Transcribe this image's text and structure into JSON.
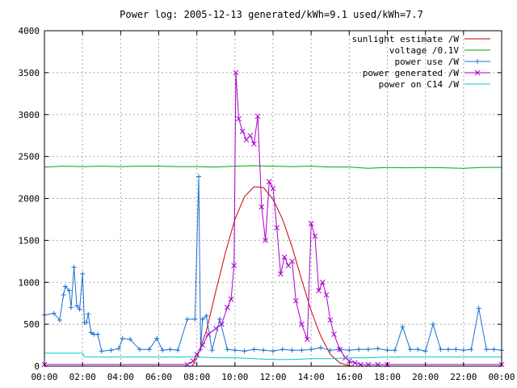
{
  "chart_data": {
    "type": "line",
    "title": "Power log: 2005-12-13 generated/kWh=9.1 used/kWh=7.7",
    "xlabel": "",
    "ylabel": "",
    "xlim": [
      0,
      24
    ],
    "ylim": [
      0,
      4000
    ],
    "x_ticks": [
      "00:00",
      "02:00",
      "04:00",
      "06:00",
      "08:00",
      "10:00",
      "12:00",
      "14:00",
      "16:00",
      "18:00",
      "20:00",
      "22:00",
      "00:00"
    ],
    "y_ticks": [
      "0",
      "500",
      "1000",
      "1500",
      "2000",
      "2500",
      "3000",
      "3500",
      "4000"
    ],
    "grid": true,
    "legend_position": "top-right",
    "series": [
      {
        "name": "sunlight estimate /W",
        "color": "#cc0000",
        "marker": "none",
        "x": [
          7.75,
          8,
          8.5,
          9,
          9.5,
          10,
          10.5,
          11,
          11.5,
          12,
          12.5,
          13,
          13.5,
          14,
          14.5,
          15,
          15.5,
          16,
          16.25
        ],
        "y": [
          0,
          100,
          420,
          900,
          1350,
          1750,
          2020,
          2140,
          2130,
          1990,
          1750,
          1420,
          1030,
          660,
          360,
          140,
          40,
          5,
          0
        ]
      },
      {
        "name": "voltage /0.1V",
        "color": "#00aa00",
        "marker": "none",
        "x": [
          0,
          1,
          2,
          3,
          4,
          5,
          6,
          7,
          8,
          9,
          10,
          11,
          12,
          13,
          14,
          15,
          16,
          17,
          18,
          19,
          20,
          21,
          22,
          23,
          24
        ],
        "y": [
          2375,
          2385,
          2380,
          2385,
          2380,
          2385,
          2385,
          2380,
          2380,
          2375,
          2385,
          2390,
          2385,
          2380,
          2385,
          2375,
          2375,
          2360,
          2370,
          2365,
          2370,
          2365,
          2360,
          2370,
          2370
        ]
      },
      {
        "name": "power use /W",
        "color": "#1a6fd1",
        "marker": "plus",
        "x": [
          0,
          0.5,
          0.8,
          1.0,
          1.1,
          1.3,
          1.4,
          1.55,
          1.7,
          1.85,
          2.0,
          2.1,
          2.2,
          2.3,
          2.45,
          2.6,
          2.8,
          3.0,
          3.5,
          3.9,
          4.1,
          4.5,
          5.0,
          5.5,
          5.9,
          6.2,
          6.6,
          7.0,
          7.5,
          7.9,
          8.1,
          8.2,
          8.3,
          8.5,
          8.8,
          9.2,
          9.6,
          10.0,
          10.5,
          11.0,
          11.5,
          12.0,
          12.5,
          13.0,
          13.5,
          14.0,
          14.5,
          15.0,
          15.5,
          16.0,
          16.5,
          17.0,
          17.5,
          18.0,
          18.4,
          18.8,
          19.2,
          19.6,
          20.0,
          20.4,
          20.8,
          21.2,
          21.6,
          22.0,
          22.4,
          22.8,
          23.2,
          23.6,
          24.0
        ],
        "y": [
          610,
          630,
          550,
          850,
          950,
          900,
          700,
          1180,
          720,
          680,
          1100,
          520,
          520,
          620,
          400,
          380,
          380,
          180,
          190,
          210,
          330,
          320,
          200,
          200,
          330,
          190,
          200,
          190,
          560,
          560,
          2260,
          200,
          560,
          600,
          190,
          560,
          200,
          190,
          180,
          200,
          190,
          180,
          200,
          190,
          190,
          200,
          220,
          190,
          200,
          190,
          200,
          200,
          210,
          190,
          190,
          470,
          200,
          200,
          180,
          500,
          200,
          200,
          200,
          190,
          200,
          690,
          200,
          200,
          190
        ]
      },
      {
        "name": "power generated /W",
        "color": "#aa00cc",
        "marker": "x",
        "x": [
          0,
          7.5,
          7.8,
          8.0,
          8.3,
          8.6,
          9.0,
          9.3,
          9.6,
          9.8,
          9.95,
          10.05,
          10.2,
          10.4,
          10.6,
          10.8,
          11.0,
          11.2,
          11.4,
          11.6,
          11.8,
          12.0,
          12.2,
          12.4,
          12.6,
          12.8,
          13.0,
          13.2,
          13.5,
          13.8,
          14.0,
          14.2,
          14.4,
          14.6,
          14.8,
          15.0,
          15.2,
          15.5,
          15.8,
          16.0,
          16.3,
          16.6,
          17.0,
          17.5,
          18.0,
          24.0
        ],
        "y": [
          20,
          20,
          60,
          140,
          250,
          380,
          450,
          500,
          700,
          800,
          1200,
          3500,
          2950,
          2800,
          2700,
          2750,
          2650,
          2980,
          1900,
          1500,
          2200,
          2120,
          1650,
          1100,
          1300,
          1200,
          1250,
          780,
          500,
          320,
          1700,
          1550,
          900,
          1000,
          850,
          550,
          380,
          200,
          100,
          60,
          40,
          20,
          20,
          20,
          20,
          20
        ]
      },
      {
        "name": "power on C14 /W",
        "color": "#00cccc",
        "marker": "none",
        "x": [
          0,
          2.0,
          2.1,
          8.0,
          9.0,
          10.0,
          11.0,
          12.0,
          13.0,
          14.0,
          15.0,
          16.0,
          17.0,
          18.0,
          19.0,
          20.0,
          21.0,
          22.0,
          23.0,
          24.0
        ],
        "y": [
          155,
          155,
          110,
          110,
          100,
          100,
          90,
          80,
          80,
          90,
          90,
          100,
          100,
          110,
          110,
          110,
          110,
          110,
          110,
          110
        ]
      }
    ]
  }
}
